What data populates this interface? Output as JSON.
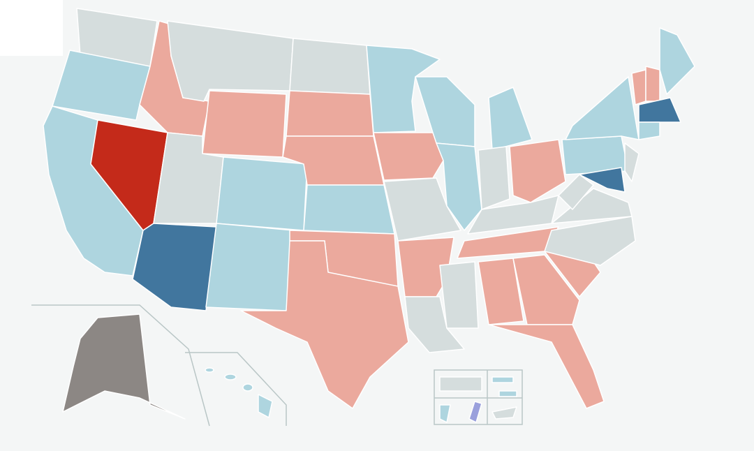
{
  "colors": [
    "#d5dddd",
    "#aed5df",
    "#eba99d",
    "#c42a1a",
    "#41769e",
    "#8c8784",
    "#9aa0dc"
  ]
}
